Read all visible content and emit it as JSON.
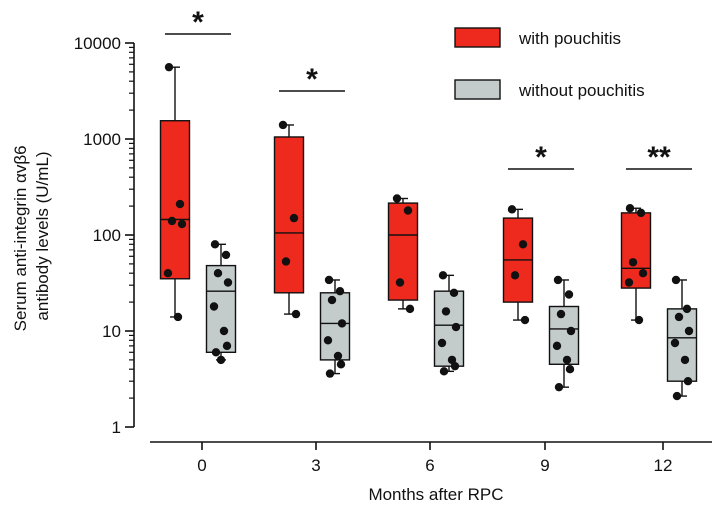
{
  "chart_data": {
    "type": "box",
    "ylabel_line1": "Serum anti-integrin αvβ6",
    "ylabel_line2": "antibody levels (U/mL)",
    "xlabel": "Months after RPC",
    "yscale": "log",
    "ylim": [
      1,
      10000
    ],
    "yticks": [
      1,
      10,
      100,
      1000,
      10000
    ],
    "ytick_labels": [
      "1",
      "10",
      "100",
      "1000",
      "10000"
    ],
    "categories": [
      "0",
      "3",
      "6",
      "9",
      "12"
    ],
    "legend_position": "top-right",
    "series": [
      {
        "name": "with pouchitis",
        "color": "#ee2a1e",
        "boxes": [
          {
            "min": 14,
            "q1": 35,
            "median": 145,
            "q3": 1550,
            "max": 5600,
            "points": [
              5600,
              210,
              140,
              130,
              40,
              14
            ]
          },
          {
            "min": 15,
            "q1": 25,
            "median": 105,
            "q3": 1050,
            "max": 1400,
            "points": [
              1400,
              150,
              53,
              15
            ]
          },
          {
            "min": 17,
            "q1": 21,
            "median": 100,
            "q3": 215,
            "max": 240,
            "points": [
              240,
              180,
              32,
              17
            ]
          },
          {
            "min": 13,
            "q1": 20,
            "median": 55,
            "q3": 150,
            "max": 185,
            "points": [
              185,
              80,
              38,
              13
            ]
          },
          {
            "min": 13,
            "q1": 28,
            "median": 45,
            "q3": 170,
            "max": 190,
            "points": [
              190,
              170,
              52,
              40,
              32,
              13
            ]
          }
        ]
      },
      {
        "name": "without pouchitis",
        "color": "#c3cbcb",
        "boxes": [
          {
            "min": 5,
            "q1": 6,
            "median": 26,
            "q3": 48,
            "max": 80,
            "points": [
              80,
              62,
              40,
              32,
              18,
              10,
              7,
              6,
              5
            ]
          },
          {
            "min": 3.6,
            "q1": 5,
            "median": 12,
            "q3": 25,
            "max": 34,
            "points": [
              34,
              26,
              21,
              12,
              8,
              5.5,
              4.5,
              3.6
            ]
          },
          {
            "min": 3.8,
            "q1": 4.3,
            "median": 11.5,
            "q3": 26,
            "max": 38,
            "points": [
              38,
              25,
              16,
              11,
              7.5,
              5,
              4.3,
              3.8
            ]
          },
          {
            "min": 2.6,
            "q1": 4.5,
            "median": 10.5,
            "q3": 18,
            "max": 34,
            "points": [
              34,
              24,
              15,
              10,
              7,
              5,
              4,
              2.6
            ]
          },
          {
            "min": 2.1,
            "q1": 3,
            "median": 8.5,
            "q3": 17,
            "max": 34,
            "points": [
              34,
              17,
              14,
              10,
              7.5,
              5,
              3,
              2.1
            ]
          }
        ]
      }
    ],
    "significance": [
      {
        "category": "0",
        "label": "*"
      },
      {
        "category": "3",
        "label": "*"
      },
      {
        "category": "9",
        "label": "*"
      },
      {
        "category": "12",
        "label": "**"
      }
    ]
  }
}
